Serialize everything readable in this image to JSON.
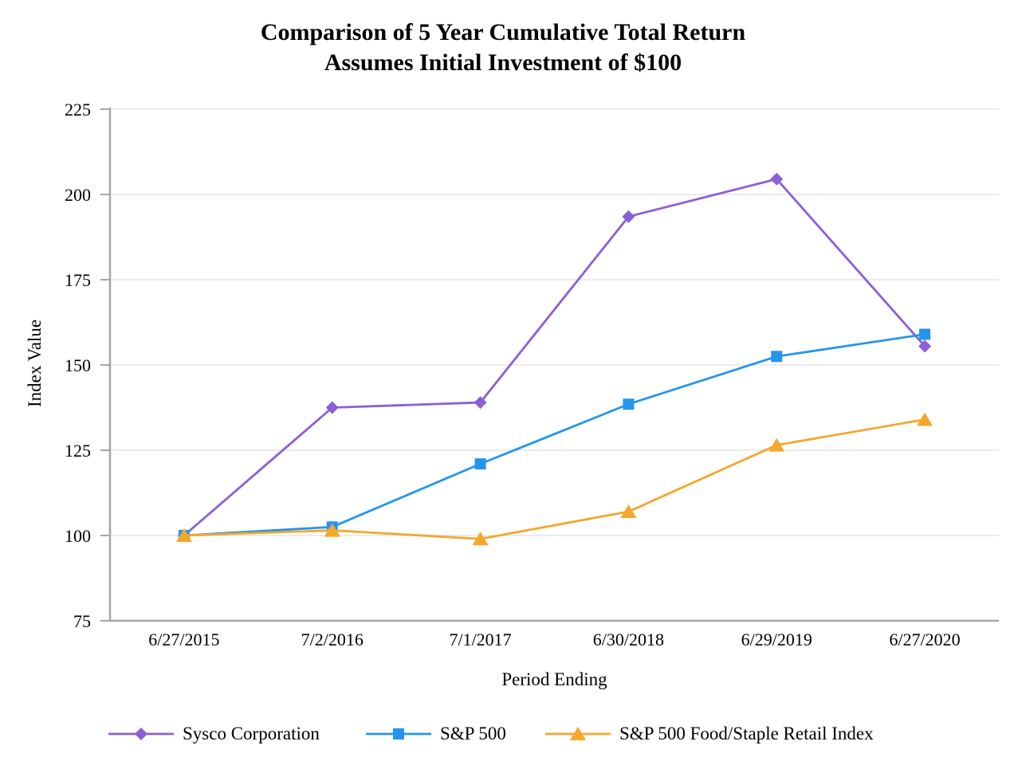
{
  "title": {
    "line1": "Comparison of 5 Year Cumulative Total Return",
    "line2": "Assumes Initial Investment of $100"
  },
  "chart_data": {
    "type": "line",
    "title": "Comparison of 5 Year Cumulative Total Return — Assumes Initial Investment of $100",
    "xlabel": "Period Ending",
    "ylabel": "Index Value",
    "ylim": [
      75,
      225
    ],
    "yticks": [
      75,
      100,
      125,
      150,
      175,
      200,
      225
    ],
    "grid": "horizontal",
    "legend_position": "bottom",
    "categories": [
      "6/27/2015",
      "7/2/2016",
      "7/1/2017",
      "6/30/2018",
      "6/29/2019",
      "6/27/2020"
    ],
    "series": [
      {
        "name": "Sysco Corporation",
        "color": "#8B5FD7",
        "marker": "diamond",
        "values": [
          100,
          137.5,
          139,
          193.5,
          204.5,
          155.5
        ]
      },
      {
        "name": "S&P 500",
        "color": "#2395EF",
        "marker": "square",
        "values": [
          100,
          102.5,
          121,
          138.5,
          152.5,
          159
        ]
      },
      {
        "name": "S&P 500 Food/Staple Retail Index",
        "color": "#F6A62B",
        "marker": "triangle",
        "values": [
          100,
          101.5,
          99,
          107,
          126.5,
          134
        ]
      }
    ]
  },
  "colors": {
    "axis": "#A6A6A6",
    "grid": "#EBEBEB",
    "background": "#FFFFFF",
    "text": "#000000"
  }
}
